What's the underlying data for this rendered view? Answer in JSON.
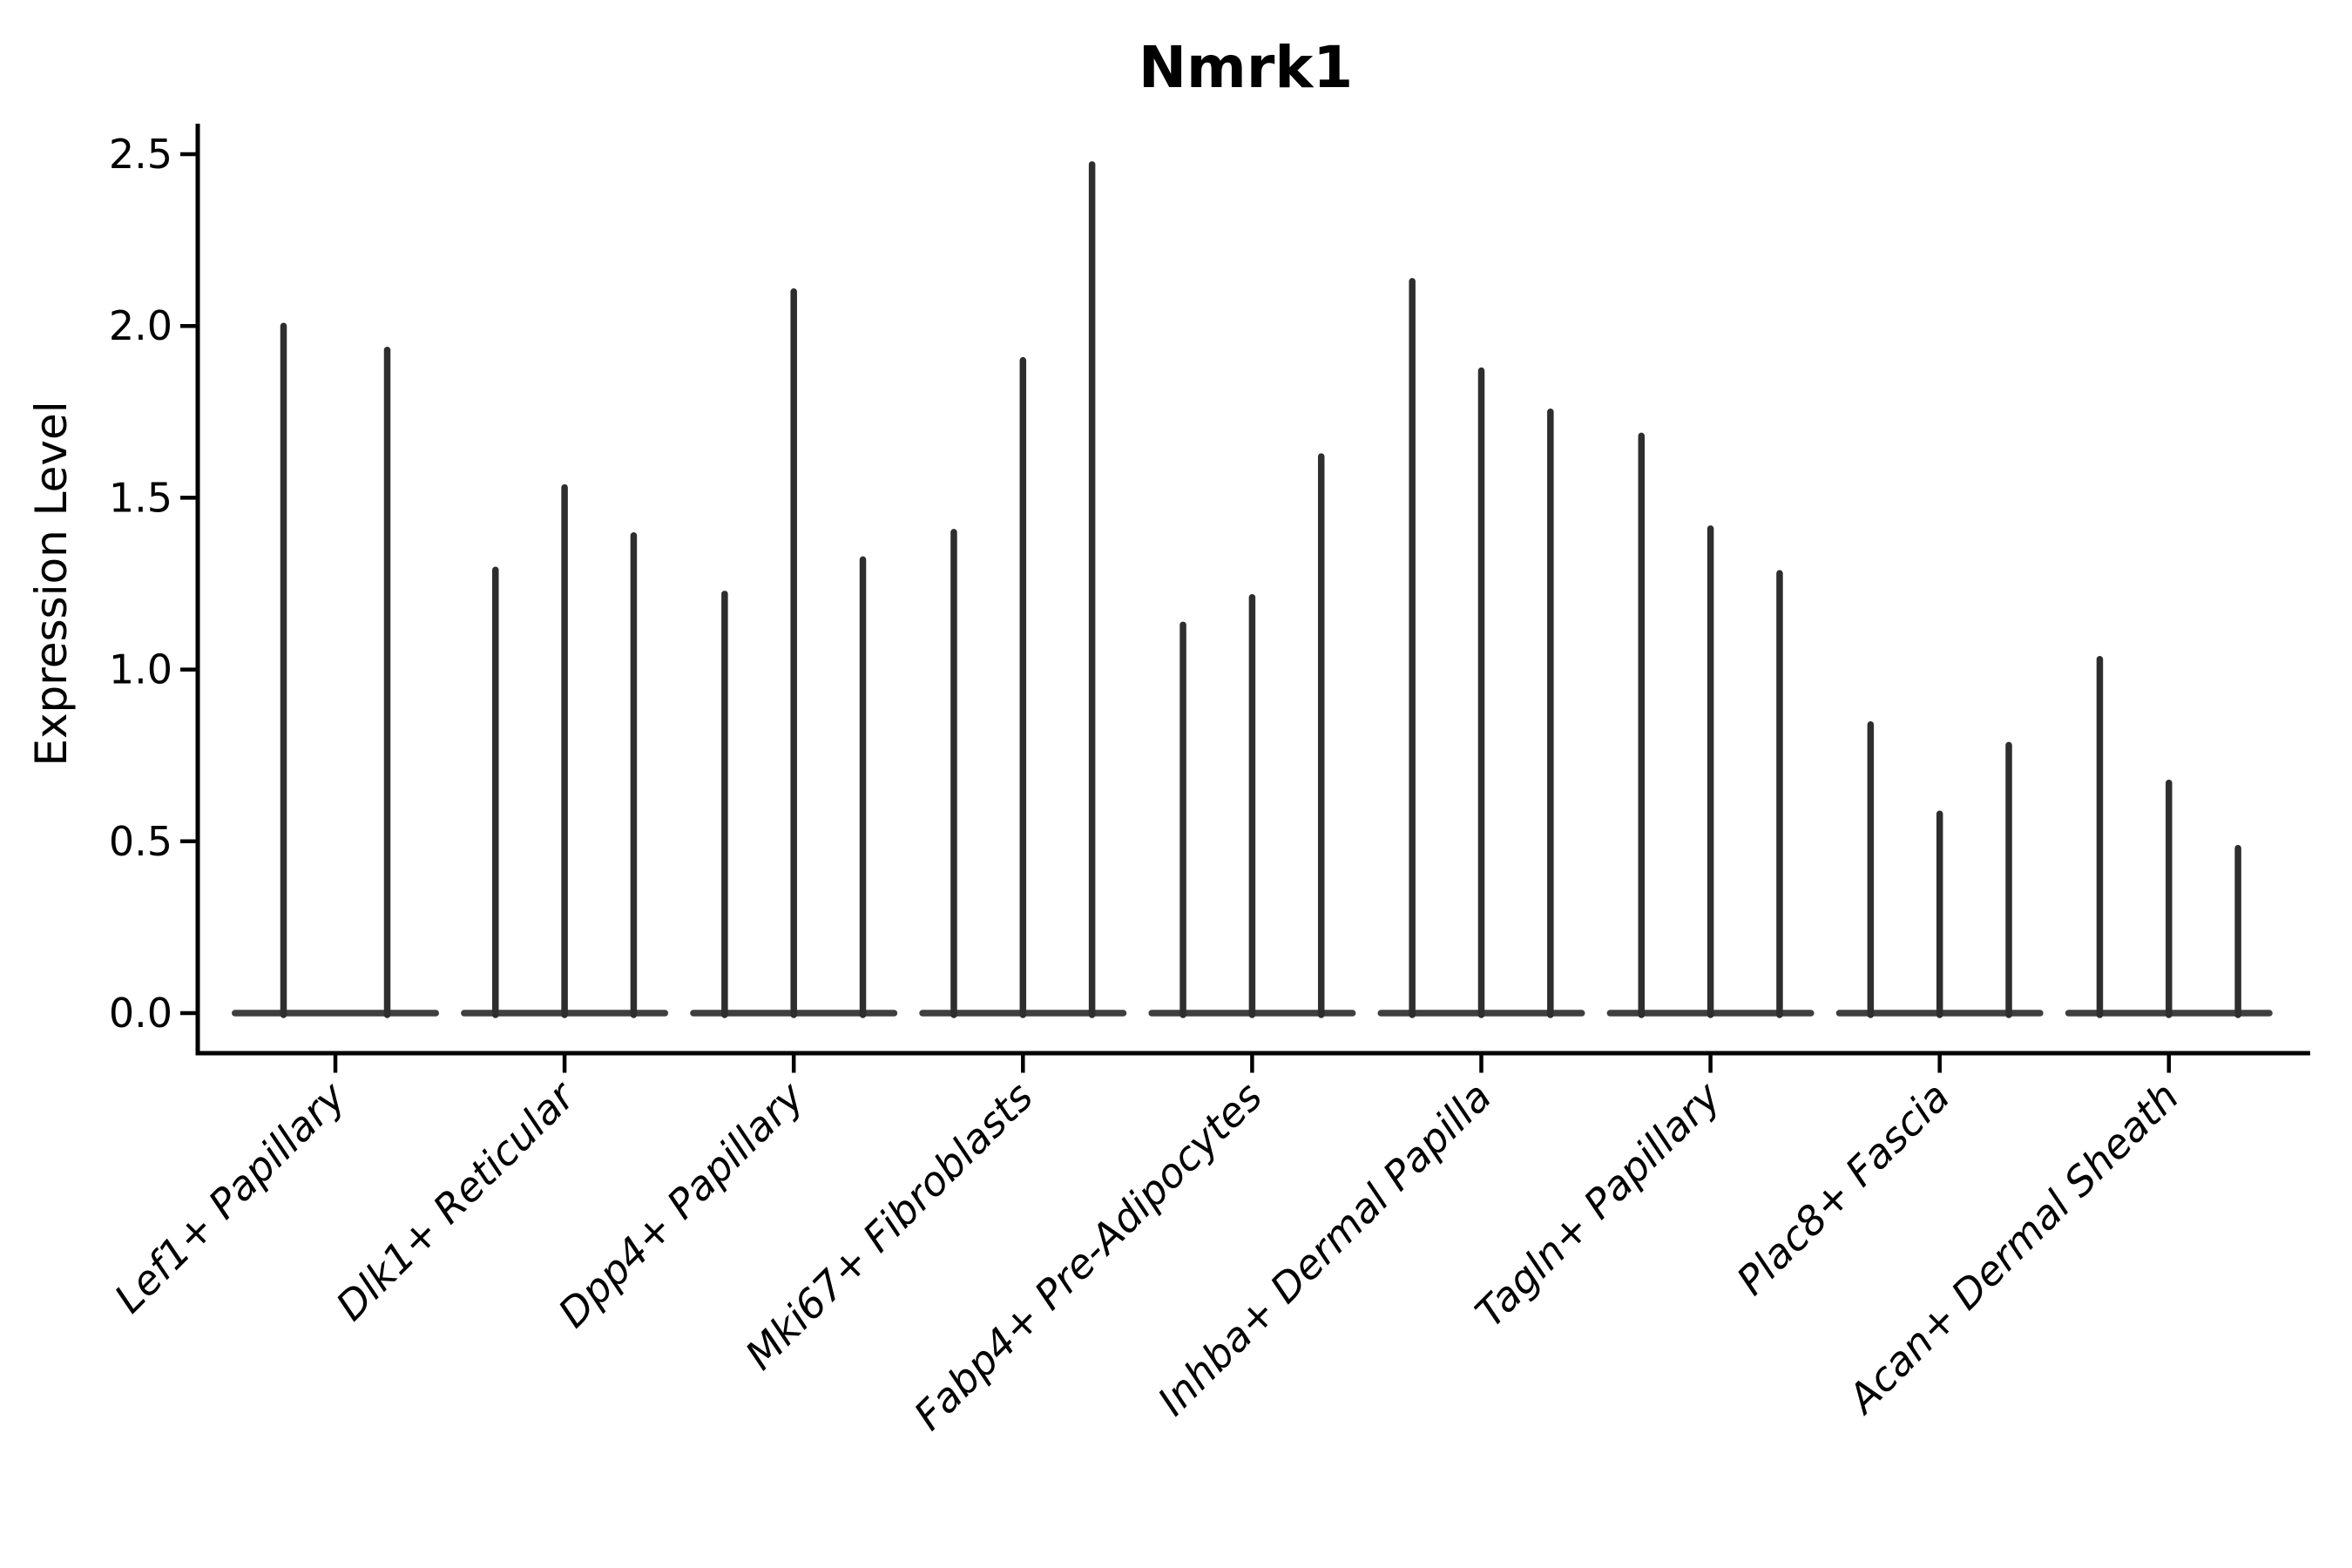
{
  "figure": {
    "title": "Nmrk1",
    "ylabel": "Expression Level"
  },
  "style": {
    "background_color": "#ffffff",
    "violin_color": "#2e2e2e",
    "baseline_color": "#3f3f3f",
    "axis_color": "#000000",
    "text_color": "#000000"
  },
  "chart_data": {
    "type": "violin",
    "title": "Nmrk1",
    "xlabel": "",
    "ylabel": "Expression Level",
    "ylim": [
      0,
      2.5
    ],
    "yticks": [
      0.0,
      0.5,
      1.0,
      1.5,
      2.0,
      2.5
    ],
    "ytick_labels": [
      "0.0",
      "0.5",
      "1.0",
      "1.5",
      "2.0",
      "2.5"
    ],
    "grid": false,
    "legend": false,
    "description": "Violin plot of Nmrk1 expression level per fibroblast subtype; expression is sparse so each violin collapses to a thin spike from 0 up to its maximum expression value, with a flat basal lens at 0. Each category holds multiple violins (split groups); Lef1+ Papillary shows 2 violins, all others 3.",
    "categories": [
      "Lef1+ Papillary",
      "Dlk1+ Reticular",
      "Dpp4+ Papillary",
      "Mki67+ Fibroblasts",
      "Fabp4+ Pre-Adipocytes",
      "Inhba+ Dermal Papilla",
      "Tagln+ Papillary",
      "Plac8+ Fascia",
      "Acan+ Dermal Sheath"
    ],
    "groups": [
      {
        "label": "Lef1+ Papillary",
        "violin_peaks": [
          2.0,
          1.93
        ]
      },
      {
        "label": "Dlk1+ Reticular",
        "violin_peaks": [
          1.29,
          1.53,
          1.39
        ]
      },
      {
        "label": "Dpp4+ Papillary",
        "violin_peaks": [
          1.22,
          2.1,
          1.32
        ]
      },
      {
        "label": "Mki67+ Fibroblasts",
        "violin_peaks": [
          1.4,
          1.9,
          2.47
        ]
      },
      {
        "label": "Fabp4+ Pre-Adipocytes",
        "violin_peaks": [
          1.13,
          1.21,
          1.62
        ]
      },
      {
        "label": "Inhba+ Dermal Papilla",
        "violin_peaks": [
          2.13,
          1.87,
          1.75
        ]
      },
      {
        "label": "Tagln+ Papillary",
        "violin_peaks": [
          1.68,
          1.41,
          1.28
        ]
      },
      {
        "label": "Plac8+ Fascia",
        "violin_peaks": [
          0.84,
          0.58,
          0.78
        ]
      },
      {
        "label": "Acan+ Dermal Sheath",
        "violin_peaks": [
          1.03,
          0.67,
          0.48
        ]
      }
    ]
  }
}
